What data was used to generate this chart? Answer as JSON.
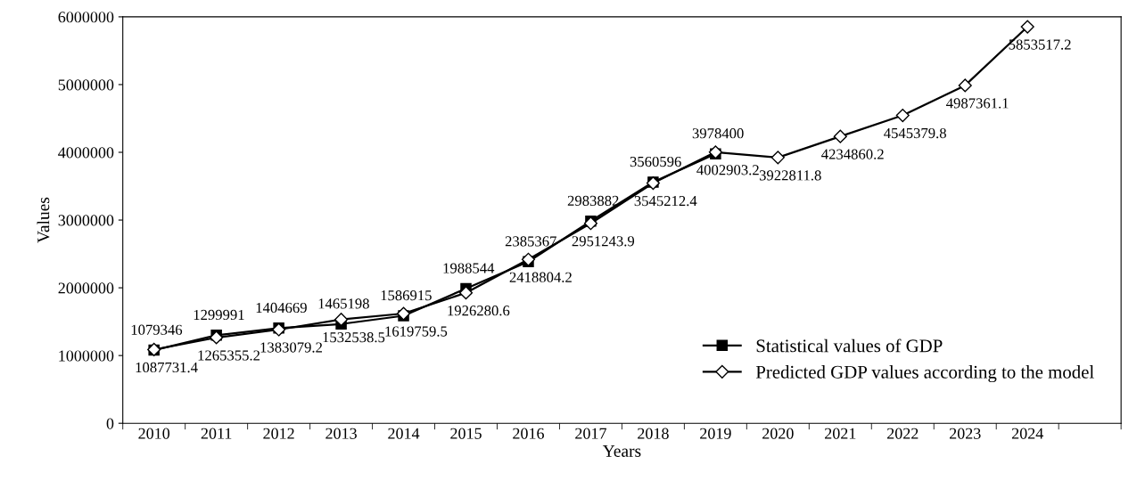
{
  "chart_data": {
    "type": "line",
    "xlabel": "Years",
    "ylabel": "Values",
    "categories": [
      "2010",
      "2011",
      "2012",
      "2013",
      "2014",
      "2015",
      "2016",
      "2017",
      "2018",
      "2019",
      "2020",
      "2021",
      "2022",
      "2023",
      "2024"
    ],
    "series": [
      {
        "name": "Statistical values of GDP",
        "color": "#000000",
        "marker": "square",
        "values": [
          1079346,
          1299991,
          1404669,
          1465198,
          1586915,
          1988544,
          2385367,
          2983882,
          3560596,
          3978400,
          null,
          null,
          null,
          null,
          null
        ]
      },
      {
        "name": "Predicted GDP values according to the model",
        "color": "#000000",
        "marker": "diamond",
        "values": [
          1087731.4,
          1265355.2,
          1383079.2,
          1532538.5,
          1619759.5,
          1926280.6,
          2418804.2,
          2951243.9,
          3545212.4,
          4002903.2,
          3922811.8,
          4234860.2,
          4545379.8,
          4987361.1,
          5853517.2
        ]
      }
    ],
    "ylim": [
      0,
      6000000
    ],
    "yticks": [
      0,
      1000000,
      2000000,
      3000000,
      4000000,
      5000000,
      6000000
    ],
    "data_labels": true,
    "grid": false,
    "legend": "bottom right",
    "line_style": "solid"
  }
}
